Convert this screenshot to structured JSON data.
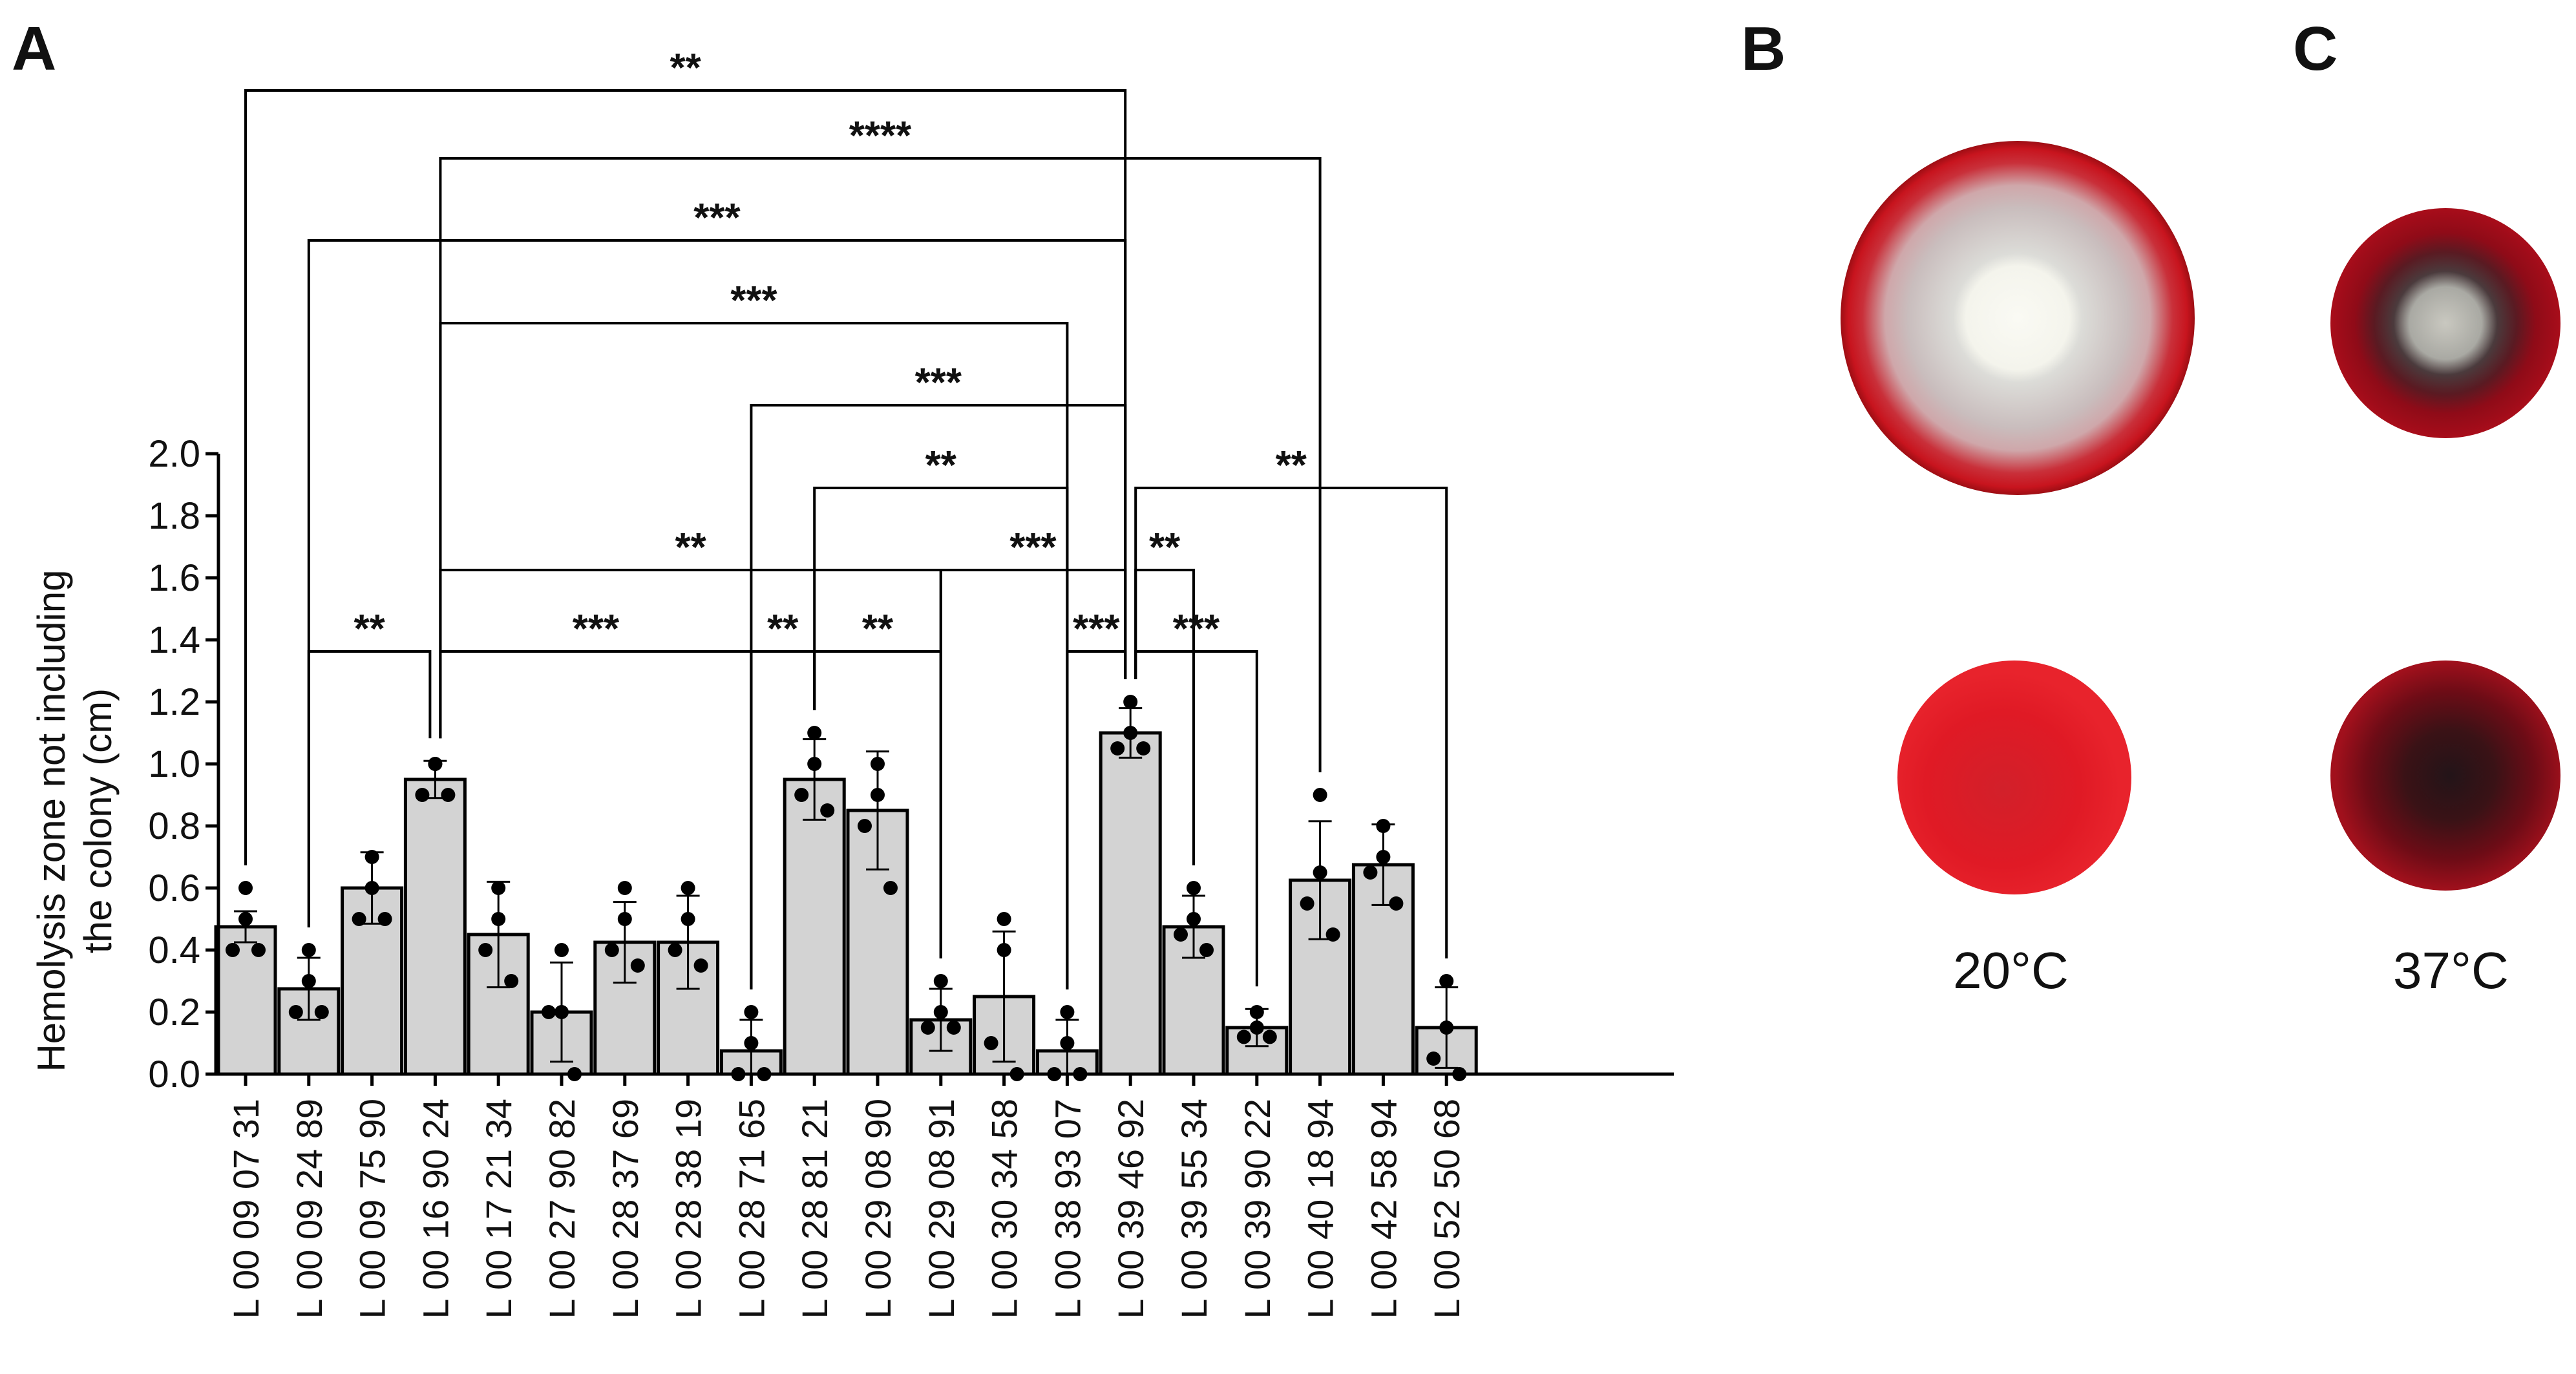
{
  "panels": {
    "a": "A",
    "b": "B",
    "c": "C"
  },
  "photo_labels": {
    "b": "20°C",
    "c": "37°C"
  },
  "colors": {
    "bar_fill": "#d3d3d3",
    "ink": "#000000"
  },
  "chart_data": {
    "type": "bar",
    "title": "",
    "xlabel": "",
    "ylabel_lines": [
      "Hemolysis zone not including",
      "the colony (cm)"
    ],
    "ylim": [
      0,
      2.0
    ],
    "yticks": [
      "0.0",
      "0.2",
      "0.4",
      "0.6",
      "0.8",
      "1.0",
      "1.2",
      "1.4",
      "1.6",
      "1.8",
      "2.0"
    ],
    "categories": [
      "L 00 09 07 31",
      "L 00 09 24 89",
      "L 00 09 75 90",
      "L 00 16 90 24",
      "L 00 17 21 34",
      "L 00 27 90 82",
      "L 00 28 37 69",
      "L 00 28 38 19",
      "L 00 28 71 65",
      "L 00 28 81 21",
      "L 00 29 08 90",
      "L 00 29 08 91",
      "L 00 30 34 58",
      "L 00 38 93 07",
      "L 00 39 46 92",
      "L 00 39 55 34",
      "L 00 39 90 22",
      "L 00 40 18 94",
      "L 00 42 58 94",
      "L 00 52 50 68"
    ],
    "values": [
      0.475,
      0.275,
      0.6,
      0.95,
      0.45,
      0.2,
      0.425,
      0.425,
      0.075,
      0.95,
      0.85,
      0.175,
      0.25,
      0.075,
      1.1,
      0.475,
      0.15,
      0.625,
      0.675,
      0.15
    ],
    "sd": [
      0.05,
      0.1,
      0.115,
      0.06,
      0.17,
      0.16,
      0.13,
      0.15,
      0.1,
      0.13,
      0.19,
      0.1,
      0.21,
      0.1,
      0.08,
      0.1,
      0.06,
      0.19,
      0.13,
      0.13
    ],
    "points": [
      [
        0.6,
        0.5,
        0.4,
        0.4
      ],
      [
        0.4,
        0.3,
        0.2,
        0.2
      ],
      [
        0.7,
        0.6,
        0.5,
        0.5
      ],
      [
        1.0,
        1.0,
        0.9,
        0.9
      ],
      [
        0.6,
        0.5,
        0.4,
        0.3
      ],
      [
        0.4,
        0.2,
        0.2,
        0.0
      ],
      [
        0.6,
        0.5,
        0.4,
        0.35
      ],
      [
        0.6,
        0.5,
        0.4,
        0.35
      ],
      [
        0.2,
        0.1,
        0.0,
        0.0
      ],
      [
        1.1,
        1.0,
        0.9,
        0.85
      ],
      [
        1.0,
        0.9,
        0.8,
        0.6
      ],
      [
        0.3,
        0.2,
        0.15,
        0.15
      ],
      [
        0.5,
        0.4,
        0.1,
        0.0
      ],
      [
        0.2,
        0.1,
        0.0,
        0.0
      ],
      [
        1.2,
        1.1,
        1.05,
        1.05
      ],
      [
        0.6,
        0.5,
        0.45,
        0.4
      ],
      [
        0.2,
        0.15,
        0.12,
        0.12
      ],
      [
        0.9,
        0.65,
        0.55,
        0.45
      ],
      [
        0.8,
        0.7,
        0.65,
        0.55
      ],
      [
        0.3,
        0.15,
        0.05,
        0.0
      ]
    ],
    "comparisons": [
      {
        "a": 0,
        "b": 14,
        "label": "**"
      },
      {
        "a": 3,
        "b": 17,
        "label": "****"
      },
      {
        "a": 1,
        "b": 14,
        "label": "***"
      },
      {
        "a": 3,
        "b": 13,
        "label": "***"
      },
      {
        "a": 8,
        "b": 14,
        "label": "***"
      },
      {
        "a": 9,
        "b": 13,
        "label": "**"
      },
      {
        "a": 14,
        "b": 19,
        "label": "**"
      },
      {
        "a": 3,
        "b": 11,
        "label": "**"
      },
      {
        "a": 11,
        "b": 14,
        "label": "***"
      },
      {
        "a": 14,
        "b": 15,
        "label": "**"
      },
      {
        "a": 1,
        "b": 3,
        "label": "**"
      },
      {
        "a": 3,
        "b": 8,
        "label": "***"
      },
      {
        "a": 8,
        "b": 9,
        "label": "**"
      },
      {
        "a": 9,
        "b": 11,
        "label": "**"
      },
      {
        "a": 13,
        "b": 14,
        "label": "***"
      },
      {
        "a": 14,
        "b": 16,
        "label": "***"
      }
    ]
  }
}
